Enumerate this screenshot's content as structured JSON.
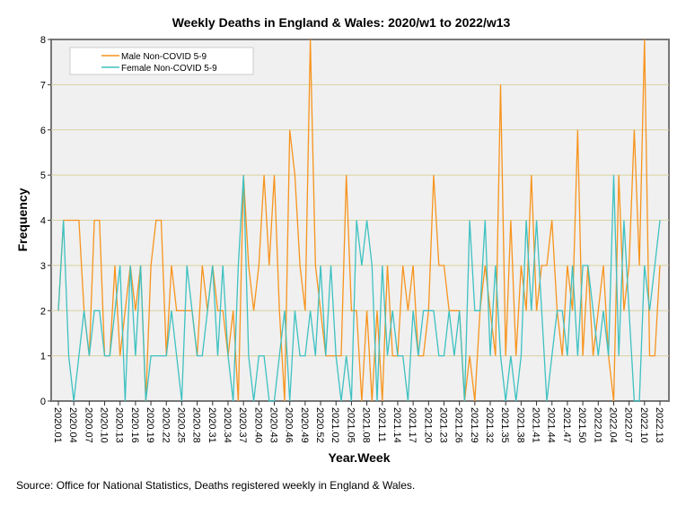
{
  "chart_data": {
    "type": "line",
    "title": "Weekly Deaths in England & Wales: 2020/w1 to 2022/w13",
    "xlabel": "Year.Week",
    "ylabel": "Frequency",
    "ylim": [
      0,
      8
    ],
    "yticks": [
      "0",
      "1",
      "2",
      "3",
      "4",
      "5",
      "6",
      "7",
      "8"
    ],
    "grid": "horizontal",
    "legend_position": "top-left",
    "tick_labels": [
      "2020.01",
      "2020.04",
      "2020.07",
      "2020.10",
      "2020.13",
      "2020.16",
      "2020.19",
      "2020.22",
      "2020.25",
      "2020.28",
      "2020.31",
      "2020.34",
      "2020.37",
      "2020.40",
      "2020.43",
      "2020.46",
      "2020.49",
      "2020.52",
      "2021.02",
      "2021.05",
      "2021.08",
      "2021.11",
      "2021.14",
      "2021.17",
      "2021.20",
      "2021.23",
      "2021.26",
      "2021.29",
      "2021.32",
      "2021.35",
      "2021.38",
      "2021.41",
      "2021.44",
      "2021.47",
      "2021.50",
      "2022.01",
      "2022.04",
      "2022.07",
      "2022.10",
      "2022.13"
    ],
    "series": [
      {
        "name": "Male Non-COVID 5-9",
        "color": "#f7941d",
        "values": [
          2,
          4,
          4,
          4,
          4,
          2,
          1,
          4,
          4,
          1,
          1,
          3,
          1,
          2,
          3,
          2,
          3,
          0,
          3,
          4,
          4,
          1,
          3,
          2,
          2,
          2,
          2,
          1,
          3,
          2,
          3,
          2,
          2,
          1,
          2,
          0,
          5,
          3,
          2,
          3,
          5,
          3,
          5,
          2,
          0,
          6,
          5,
          3,
          2,
          8,
          3,
          2,
          1,
          1,
          1,
          1,
          5,
          2,
          2,
          0,
          2,
          0,
          2,
          0,
          3,
          1,
          1,
          3,
          2,
          3,
          1,
          1,
          2,
          5,
          3,
          3,
          2,
          2,
          2,
          0,
          1,
          0,
          2,
          3,
          2,
          1,
          7,
          1,
          4,
          1,
          3,
          2,
          5,
          2,
          3,
          3,
          4,
          2,
          1,
          3,
          2,
          6,
          1,
          3,
          1,
          2,
          3,
          1,
          0,
          5,
          2,
          3,
          6,
          3,
          8,
          1,
          1,
          3
        ]
      },
      {
        "name": "Female Non-COVID 5-9",
        "color": "#3ec1c1",
        "values": [
          2,
          4,
          1,
          0,
          1,
          2,
          1,
          2,
          2,
          1,
          1,
          2,
          3,
          0,
          3,
          1,
          3,
          0,
          1,
          1,
          1,
          1,
          2,
          1,
          0,
          3,
          2,
          1,
          1,
          2,
          3,
          1,
          3,
          1,
          0,
          3,
          5,
          1,
          0,
          1,
          1,
          0,
          0,
          1,
          2,
          0,
          2,
          1,
          1,
          2,
          1,
          3,
          1,
          3,
          1,
          0,
          1,
          0,
          4,
          3,
          4,
          3,
          0,
          3,
          1,
          2,
          1,
          1,
          0,
          2,
          1,
          2,
          2,
          2,
          1,
          1,
          2,
          1,
          2,
          0,
          4,
          2,
          2,
          4,
          1,
          3,
          1,
          0,
          1,
          0,
          1,
          4,
          2,
          4,
          2,
          0,
          1,
          2,
          2,
          1,
          3,
          1,
          3,
          3,
          2,
          1,
          2,
          1,
          5,
          1,
          4,
          2,
          0,
          0,
          3,
          2,
          3,
          4
        ]
      }
    ]
  },
  "source": "Source: Office for National Statistics, Deaths registered weekly in England & Wales."
}
